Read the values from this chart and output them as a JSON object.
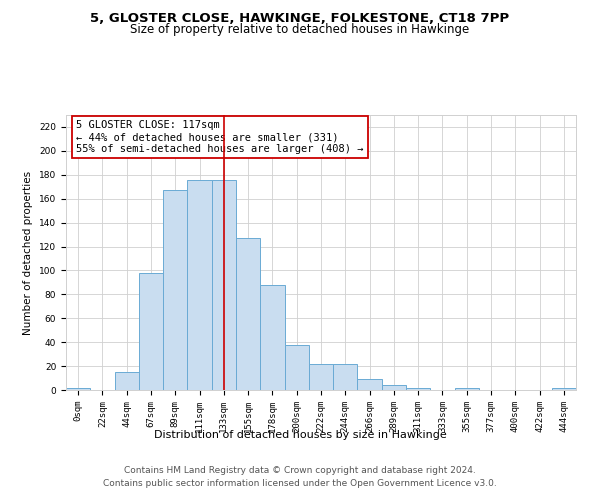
{
  "title": "5, GLOSTER CLOSE, HAWKINGE, FOLKESTONE, CT18 7PP",
  "subtitle": "Size of property relative to detached houses in Hawkinge",
  "xlabel": "Distribution of detached houses by size in Hawkinge",
  "ylabel": "Number of detached properties",
  "bar_color": "#c9ddf0",
  "bar_edge_color": "#6aaad4",
  "background_color": "#ffffff",
  "grid_color": "#d0d0d0",
  "categories": [
    "0sqm",
    "22sqm",
    "44sqm",
    "67sqm",
    "89sqm",
    "111sqm",
    "133sqm",
    "155sqm",
    "178sqm",
    "200sqm",
    "222sqm",
    "244sqm",
    "266sqm",
    "289sqm",
    "311sqm",
    "333sqm",
    "355sqm",
    "377sqm",
    "400sqm",
    "422sqm",
    "444sqm"
  ],
  "values": [
    2,
    0,
    15,
    98,
    167,
    176,
    176,
    127,
    88,
    38,
    22,
    22,
    9,
    4,
    2,
    0,
    2,
    0,
    0,
    0,
    2
  ],
  "ylim": [
    0,
    230
  ],
  "yticks": [
    0,
    20,
    40,
    60,
    80,
    100,
    120,
    140,
    160,
    180,
    200,
    220
  ],
  "property_line_x": 6.0,
  "annotation_text": "5 GLOSTER CLOSE: 117sqm\n← 44% of detached houses are smaller (331)\n55% of semi-detached houses are larger (408) →",
  "annotation_box_color": "#ffffff",
  "annotation_box_edge_color": "#cc0000",
  "vline_color": "#cc0000",
  "footer_line1": "Contains HM Land Registry data © Crown copyright and database right 2024.",
  "footer_line2": "Contains public sector information licensed under the Open Government Licence v3.0.",
  "title_fontsize": 9.5,
  "subtitle_fontsize": 8.5,
  "xlabel_fontsize": 8,
  "ylabel_fontsize": 7.5,
  "annotation_fontsize": 7.5,
  "footer_fontsize": 6.5,
  "tick_fontsize": 6.5
}
